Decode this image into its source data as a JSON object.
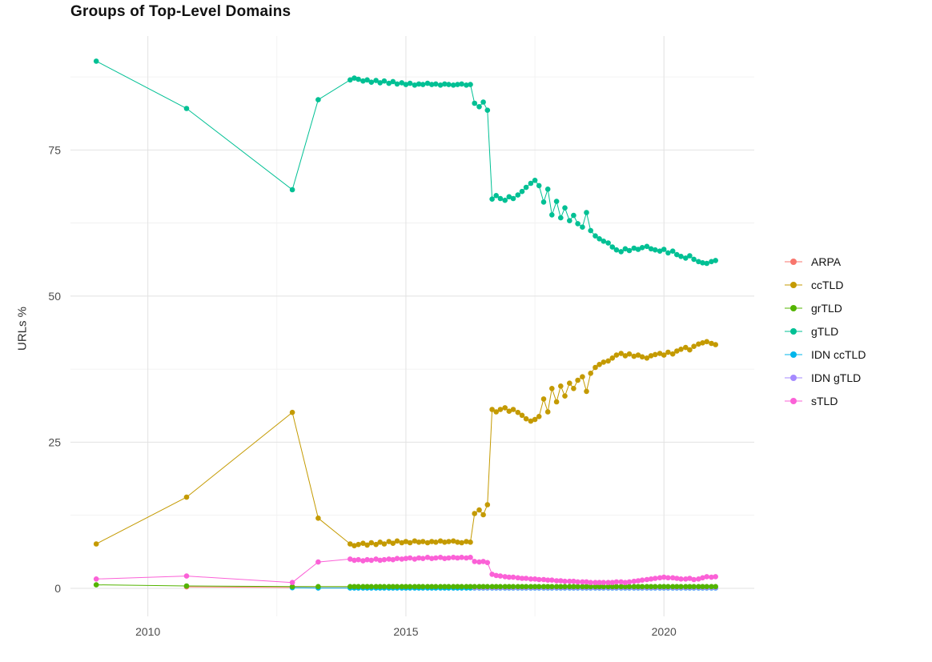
{
  "chart_data": {
    "type": "line",
    "title": "Groups of Top-Level Domains",
    "ylabel": "URLs %",
    "xlabel": "",
    "legend_position": "right",
    "background": "#FFFFFF",
    "grid": {
      "major_color": "#E2E2E2",
      "minor_color": "#F1F1F1"
    },
    "axes": {
      "x_ticks": [
        2010,
        2015,
        2020
      ],
      "x_tick_labels": [
        "2010",
        "2015",
        "2020"
      ],
      "x_minor": [
        2012.5,
        2017.5
      ],
      "y_ticks": [
        0,
        25,
        50,
        75
      ],
      "y_tick_labels": [
        "0",
        "25",
        "50",
        "75"
      ],
      "y_minor": [
        12.5,
        37.5,
        62.5,
        87.5
      ],
      "xlim": [
        2008.5,
        2021.75
      ],
      "ylim": [
        -4.8,
        94.5
      ]
    },
    "x_dense": [
      2013.92,
      2014.0,
      2014.08,
      2014.17,
      2014.25,
      2014.33,
      2014.42,
      2014.5,
      2014.58,
      2014.67,
      2014.75,
      2014.83,
      2014.92,
      2015.0,
      2015.08,
      2015.17,
      2015.25,
      2015.33,
      2015.42,
      2015.5,
      2015.58,
      2015.67,
      2015.75,
      2015.83,
      2015.92,
      2016.0,
      2016.08,
      2016.17,
      2016.25,
      2016.33,
      2016.42,
      2016.5,
      2016.58,
      2016.67,
      2016.75,
      2016.83,
      2016.92,
      2017.0,
      2017.08,
      2017.17,
      2017.25,
      2017.33,
      2017.42,
      2017.5,
      2017.58,
      2017.67,
      2017.75,
      2017.83,
      2017.92,
      2018.0,
      2018.08,
      2018.17,
      2018.25,
      2018.33,
      2018.42,
      2018.5,
      2018.58,
      2018.67,
      2018.75,
      2018.83,
      2018.92,
      2019.0,
      2019.08,
      2019.17,
      2019.25,
      2019.33,
      2019.42,
      2019.5,
      2019.58,
      2019.67,
      2019.75,
      2019.83,
      2019.92,
      2020.0,
      2020.08,
      2020.17,
      2020.25,
      2020.33,
      2020.42,
      2020.5,
      2020.58,
      2020.67,
      2020.75,
      2020.83,
      2020.92,
      2021.0
    ],
    "series": [
      {
        "name": "ARPA",
        "color": "#F8766D",
        "sparse": [
          [
            2010.75,
            0.25
          ],
          [
            2012.8,
            0.15
          ],
          [
            2013.3,
            0.1
          ]
        ],
        "dense": [
          0.1,
          0.1,
          0.1,
          0.1,
          0.1,
          0.1,
          0.1,
          0.1,
          0.1,
          0.1,
          0.1,
          0.1,
          0.1,
          0.1,
          0.1,
          0.1,
          0.1,
          0.1,
          0.1,
          0.1,
          0.1,
          0.1,
          0.1,
          0.1,
          0.1,
          0.1,
          0.1,
          0.1,
          0.1,
          0.1,
          0.1,
          0.1,
          0.1,
          0.1,
          0.1,
          0.1,
          0.1,
          0.1,
          0.1,
          0.1,
          0.1,
          0.1,
          0.1,
          0.1,
          0.1,
          0.1,
          0.1,
          0.1,
          0.1,
          0.1,
          0.1,
          0.1,
          0.1,
          0.1,
          0.1,
          0.1,
          0.1,
          0.1,
          0.1,
          0.1,
          0.1,
          0.1,
          0.1,
          0.1,
          0.1,
          0.1,
          0.1,
          0.1,
          0.1,
          0.1,
          0.1,
          0.1,
          0.1,
          0.1,
          0.1,
          0.1,
          0.1,
          0.1,
          0.1,
          0.1,
          0.1,
          0.1,
          0.1,
          0.1,
          0.1,
          0.1
        ]
      },
      {
        "name": "ccTLD",
        "color": "#C49A00",
        "sparse": [
          [
            2009.0,
            7.6
          ],
          [
            2010.75,
            15.6
          ],
          [
            2012.8,
            30.1
          ],
          [
            2013.3,
            12.0
          ]
        ],
        "dense": [
          7.6,
          7.3,
          7.5,
          7.7,
          7.4,
          7.8,
          7.5,
          7.9,
          7.6,
          8.0,
          7.7,
          8.1,
          7.8,
          8.0,
          7.8,
          8.1,
          7.9,
          8.0,
          7.8,
          8.0,
          7.9,
          8.1,
          7.9,
          8.0,
          8.1,
          7.9,
          7.8,
          8.0,
          7.9,
          12.8,
          13.4,
          12.6,
          14.3,
          30.6,
          30.2,
          30.6,
          30.9,
          30.3,
          30.6,
          30.1,
          29.6,
          29.0,
          28.6,
          28.9,
          29.4,
          32.4,
          30.2,
          34.2,
          31.9,
          34.6,
          32.9,
          35.1,
          34.2,
          35.6,
          36.2,
          33.7,
          36.8,
          37.8,
          38.3,
          38.7,
          38.9,
          39.4,
          39.9,
          40.2,
          39.8,
          40.1,
          39.7,
          39.9,
          39.6,
          39.4,
          39.8,
          40.0,
          40.2,
          39.9,
          40.4,
          40.1,
          40.6,
          40.9,
          41.2,
          40.8,
          41.4,
          41.8,
          42.0,
          42.2,
          41.9,
          41.7
        ]
      },
      {
        "name": "grTLD",
        "color": "#53B400",
        "sparse": [
          [
            2009.0,
            0.6
          ],
          [
            2010.75,
            0.4
          ],
          [
            2012.8,
            0.3
          ],
          [
            2013.3,
            0.3
          ]
        ],
        "dense": [
          0.3,
          0.3,
          0.3,
          0.3,
          0.3,
          0.3,
          0.3,
          0.3,
          0.3,
          0.3,
          0.3,
          0.3,
          0.3,
          0.3,
          0.3,
          0.3,
          0.3,
          0.3,
          0.3,
          0.3,
          0.3,
          0.3,
          0.3,
          0.3,
          0.3,
          0.3,
          0.3,
          0.3,
          0.3,
          0.3,
          0.3,
          0.3,
          0.3,
          0.3,
          0.3,
          0.3,
          0.3,
          0.3,
          0.3,
          0.3,
          0.3,
          0.3,
          0.3,
          0.3,
          0.3,
          0.3,
          0.3,
          0.3,
          0.3,
          0.3,
          0.3,
          0.3,
          0.3,
          0.3,
          0.3,
          0.3,
          0.3,
          0.3,
          0.3,
          0.3,
          0.3,
          0.3,
          0.3,
          0.3,
          0.3,
          0.3,
          0.3,
          0.3,
          0.3,
          0.3,
          0.3,
          0.3,
          0.3,
          0.3,
          0.3,
          0.3,
          0.3,
          0.3,
          0.3,
          0.3,
          0.3,
          0.3,
          0.3,
          0.3,
          0.3,
          0.3
        ]
      },
      {
        "name": "gTLD",
        "color": "#00C094",
        "sparse": [
          [
            2009.0,
            90.2
          ],
          [
            2010.75,
            82.1
          ],
          [
            2012.8,
            68.2
          ],
          [
            2013.3,
            83.6
          ]
        ],
        "dense": [
          87.0,
          87.3,
          87.1,
          86.8,
          87.0,
          86.6,
          86.9,
          86.5,
          86.8,
          86.4,
          86.7,
          86.3,
          86.5,
          86.2,
          86.4,
          86.1,
          86.3,
          86.2,
          86.4,
          86.2,
          86.3,
          86.1,
          86.3,
          86.2,
          86.1,
          86.2,
          86.3,
          86.1,
          86.2,
          83.0,
          82.4,
          83.2,
          81.8,
          66.6,
          67.2,
          66.7,
          66.4,
          67.0,
          66.7,
          67.3,
          67.9,
          68.6,
          69.3,
          69.8,
          68.9,
          66.1,
          68.3,
          63.9,
          66.2,
          63.4,
          65.1,
          62.9,
          63.8,
          62.4,
          61.8,
          64.3,
          61.2,
          60.3,
          59.8,
          59.4,
          59.1,
          58.4,
          57.9,
          57.6,
          58.1,
          57.8,
          58.2,
          58.0,
          58.3,
          58.5,
          58.1,
          57.9,
          57.7,
          58.0,
          57.4,
          57.7,
          57.1,
          56.8,
          56.5,
          56.9,
          56.3,
          55.9,
          55.7,
          55.6,
          55.9,
          56.1
        ]
      },
      {
        "name": "IDN ccTLD",
        "color": "#00B6EB",
        "sparse": [
          [
            2012.8,
            0.1
          ],
          [
            2013.3,
            0.05
          ]
        ],
        "dense": [
          0.05,
          0.05,
          0.05,
          0.05,
          0.05,
          0.05,
          0.05,
          0.05,
          0.05,
          0.05,
          0.05,
          0.05,
          0.05,
          0.05,
          0.05,
          0.05,
          0.05,
          0.05,
          0.05,
          0.05,
          0.05,
          0.05,
          0.05,
          0.05,
          0.05,
          0.05,
          0.05,
          0.05,
          0.05,
          0.05,
          0.05,
          0.05,
          0.05,
          0.05,
          0.05,
          0.05,
          0.05,
          0.05,
          0.05,
          0.05,
          0.05,
          0.05,
          0.05,
          0.05,
          0.05,
          0.05,
          0.05,
          0.05,
          0.05,
          0.05,
          0.05,
          0.05,
          0.05,
          0.05,
          0.05,
          0.05,
          0.05,
          0.05,
          0.05,
          0.05,
          0.05,
          0.05,
          0.05,
          0.05,
          0.05,
          0.05,
          0.05,
          0.05,
          0.05,
          0.05,
          0.05,
          0.05,
          0.05,
          0.05,
          0.05,
          0.05,
          0.05,
          0.05,
          0.05,
          0.05,
          0.05,
          0.05,
          0.05,
          0.05,
          0.05,
          0.05
        ]
      },
      {
        "name": "IDN gTLD",
        "color": "#A58AFF",
        "sparse": [],
        "dense": [
          null,
          null,
          null,
          null,
          null,
          null,
          null,
          null,
          null,
          null,
          null,
          null,
          null,
          null,
          null,
          null,
          null,
          null,
          null,
          null,
          null,
          null,
          null,
          null,
          null,
          null,
          null,
          null,
          null,
          0.1,
          0.1,
          0.1,
          0.1,
          0.1,
          0.1,
          0.1,
          0.1,
          0.1,
          0.1,
          0.1,
          0.1,
          0.1,
          0.1,
          0.1,
          0.1,
          0.1,
          0.1,
          0.1,
          0.1,
          0.1,
          0.1,
          0.1,
          0.1,
          0.1,
          0.1,
          0.1,
          0.1,
          0.1,
          0.1,
          0.1,
          0.1,
          0.1,
          0.1,
          0.1,
          0.1,
          0.1,
          0.1,
          0.1,
          0.1,
          0.1,
          0.1,
          0.1,
          0.1,
          0.1,
          0.1,
          0.1,
          0.1,
          0.1,
          0.1,
          0.1,
          0.1,
          0.1,
          0.1,
          0.1,
          0.1,
          0.1
        ]
      },
      {
        "name": "sTLD",
        "color": "#FB61D7",
        "sparse": [
          [
            2009.0,
            1.6
          ],
          [
            2010.75,
            2.1
          ],
          [
            2012.8,
            1.0
          ],
          [
            2013.3,
            4.5
          ]
        ],
        "dense": [
          5.0,
          4.8,
          4.9,
          4.7,
          4.9,
          4.8,
          5.0,
          4.8,
          4.9,
          5.0,
          4.9,
          5.1,
          5.0,
          5.1,
          5.2,
          5.0,
          5.2,
          5.1,
          5.3,
          5.1,
          5.2,
          5.3,
          5.1,
          5.2,
          5.3,
          5.2,
          5.3,
          5.2,
          5.3,
          4.6,
          4.5,
          4.6,
          4.4,
          2.4,
          2.2,
          2.1,
          2.0,
          1.9,
          1.9,
          1.8,
          1.7,
          1.7,
          1.6,
          1.6,
          1.5,
          1.5,
          1.4,
          1.4,
          1.3,
          1.3,
          1.2,
          1.2,
          1.2,
          1.1,
          1.1,
          1.1,
          1.0,
          1.0,
          1.0,
          1.0,
          1.0,
          1.0,
          1.1,
          1.1,
          1.0,
          1.1,
          1.2,
          1.3,
          1.4,
          1.5,
          1.6,
          1.7,
          1.8,
          1.9,
          1.8,
          1.8,
          1.7,
          1.6,
          1.6,
          1.7,
          1.5,
          1.6,
          1.8,
          2.0,
          1.9,
          2.0
        ]
      }
    ]
  }
}
